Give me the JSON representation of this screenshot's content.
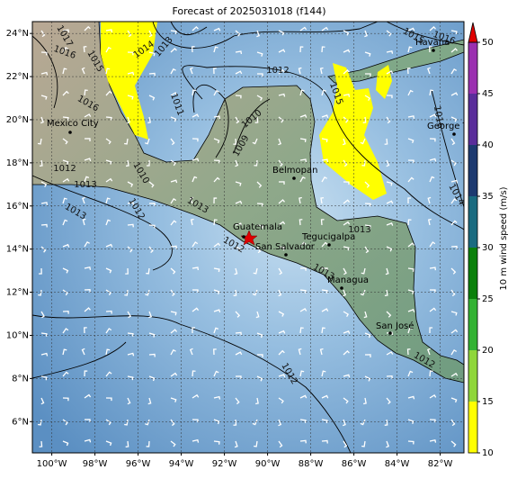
{
  "title": "Forecast of 2025031018 (f144)",
  "map": {
    "xlim": [
      -100.9,
      -80.9
    ],
    "ylim": [
      4.55,
      24.55
    ],
    "xticks": [
      {
        "value": -100,
        "label": "100°W"
      },
      {
        "value": -98,
        "label": "98°W"
      },
      {
        "value": -96,
        "label": "96°W"
      },
      {
        "value": -94,
        "label": "94°W"
      },
      {
        "value": -92,
        "label": "92°W"
      },
      {
        "value": -90,
        "label": "90°W"
      },
      {
        "value": -88,
        "label": "88°W"
      },
      {
        "value": -86,
        "label": "86°W"
      },
      {
        "value": -84,
        "label": "84°W"
      },
      {
        "value": -82,
        "label": "82°W"
      }
    ],
    "yticks": [
      {
        "value": 6,
        "label": "6°N"
      },
      {
        "value": 8,
        "label": "8°N"
      },
      {
        "value": 10,
        "label": "10°N"
      },
      {
        "value": 12,
        "label": "12°N"
      },
      {
        "value": 14,
        "label": "14°N"
      },
      {
        "value": 16,
        "label": "16°N"
      },
      {
        "value": 18,
        "label": "18°N"
      },
      {
        "value": 20,
        "label": "20°N"
      },
      {
        "value": 22,
        "label": "22°N"
      },
      {
        "value": 24,
        "label": "24°N"
      }
    ],
    "grid": true,
    "cities": [
      "Mexico City",
      "Belmopan",
      "Guatemala",
      "San Salvador",
      "Tegucigalpa",
      "Managua",
      "San José",
      "Havana",
      "George Town"
    ],
    "isobar_labels": [
      1017,
      1016,
      1015,
      1014,
      1013,
      1012,
      1011,
      1010,
      1009,
      1016,
      1012,
      1013,
      1010,
      1013,
      1012,
      1013,
      1012,
      1013,
      1015,
      1015,
      1016,
      1016,
      1014,
      1012,
      1013,
      1012
    ]
  },
  "colorbar": {
    "label": "10 m wind speed (m/s)",
    "ticks": [
      10,
      15,
      20,
      25,
      30,
      35,
      40,
      45,
      50
    ],
    "colors": [
      "#ffff00",
      "#8fd63a",
      "#33b233",
      "#0b800b",
      "#1a6b80",
      "#1d3a70",
      "#5a2d9a",
      "#9b30b0"
    ],
    "extend_color": "#e00000"
  }
}
